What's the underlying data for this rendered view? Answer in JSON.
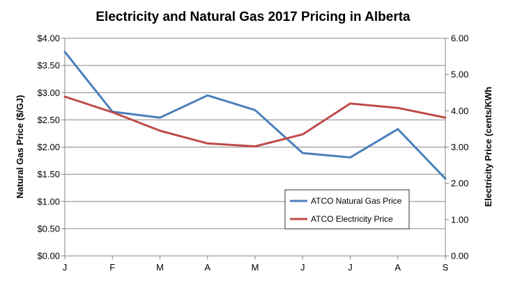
{
  "chart_data": {
    "type": "line",
    "title": "Electricity and Natural Gas 2017 Pricing in Alberta",
    "categories": [
      "J",
      "F",
      "M",
      "A",
      "M",
      "J",
      "J",
      "A",
      "S"
    ],
    "y_left": {
      "label": "Natural Gas Price ($/GJ)",
      "range": [
        0,
        4
      ],
      "ticks": [
        0,
        0.5,
        1,
        1.5,
        2,
        2.5,
        3,
        3.5,
        4
      ],
      "tick_labels": [
        "$0.00",
        "$0.50",
        "$1.00",
        "$1.50",
        "$2.00",
        "$2.50",
        "$3.00",
        "$3.50",
        "$4.00"
      ]
    },
    "y_right": {
      "label": "Electricity Price (cents/KWh",
      "range": [
        0,
        6
      ],
      "ticks": [
        0,
        1,
        2,
        3,
        4,
        5,
        6
      ],
      "tick_labels": [
        "0.00",
        "1.00",
        "2.00",
        "3.00",
        "4.00",
        "5.00",
        "6.00"
      ]
    },
    "series": [
      {
        "name": "ATCO Natural Gas Price",
        "axis": "left",
        "color": "#4a7ebb",
        "values": [
          3.75,
          2.65,
          2.54,
          2.95,
          2.68,
          1.89,
          1.81,
          2.33,
          1.42
        ]
      },
      {
        "name": "ATCO Electricity Price",
        "axis": "right",
        "color": "#be4b48",
        "values": [
          4.39,
          3.96,
          3.45,
          3.1,
          3.02,
          3.35,
          4.2,
          4.08,
          3.81
        ]
      }
    ],
    "grid": "horizontal",
    "legend_position": "bottom-right inside plot"
  }
}
